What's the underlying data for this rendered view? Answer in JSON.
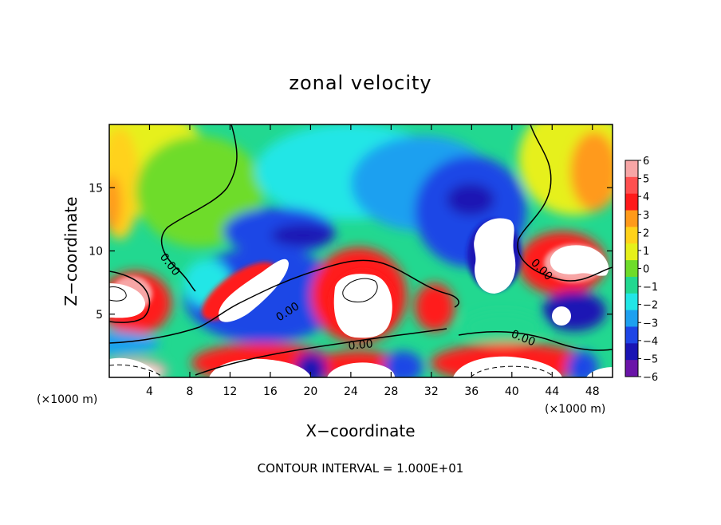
{
  "chart_data": {
    "type": "heatmap",
    "title": "zonal velocity",
    "xlabel": "X−coordinate",
    "ylabel": "Z−coordinate",
    "x_units": "(×1000 m)",
    "x_units_right": "(×1000 m)",
    "xlim": [
      0,
      50
    ],
    "ylim": [
      0,
      20
    ],
    "x_ticks": [
      4,
      8,
      12,
      16,
      20,
      24,
      28,
      32,
      36,
      40,
      44,
      48
    ],
    "y_ticks": [
      5,
      10,
      15
    ],
    "colorbar": {
      "ticks": [
        6,
        5,
        4,
        3,
        2,
        1,
        0,
        -1,
        -2,
        -3,
        -4,
        -5,
        -6
      ],
      "tick_labels": [
        "6",
        "5",
        "4",
        "3",
        "2",
        "1",
        "0",
        "−1",
        "−2",
        "−3",
        "−4",
        "−5",
        "−6"
      ],
      "colors": [
        "#f7a6a6",
        "#ff5050",
        "#ff1a1a",
        "#ff9a1a",
        "#ffd21a",
        "#e6f01a",
        "#6edc2a",
        "#22d890",
        "#22e6e6",
        "#1ea0f0",
        "#1e46e6",
        "#1a14b4",
        "#6a14a8"
      ]
    },
    "contour_labels": [
      "0.00",
      "0.00",
      "0.00",
      "0.00",
      "0.00"
    ],
    "footer": "CONTOUR INTERVAL = 1.000E+01"
  }
}
